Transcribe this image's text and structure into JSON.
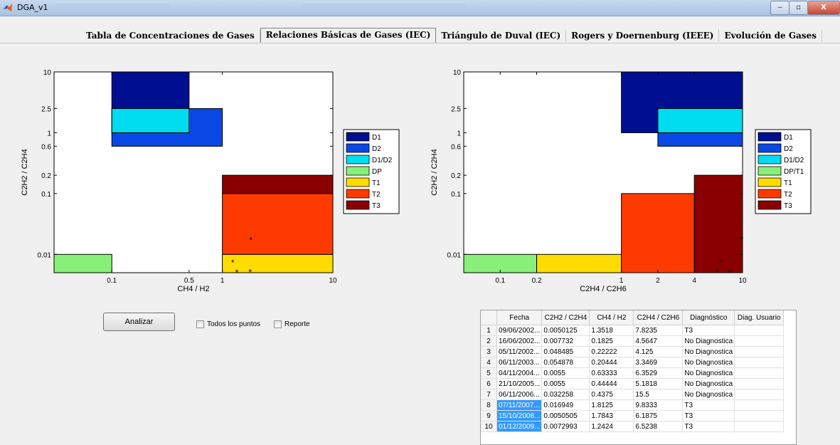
{
  "window": {
    "title": "DGA_v1",
    "min_label": "‒",
    "max_label": "▫",
    "close_label": "X"
  },
  "tabs": [
    {
      "label": "Tabla de Concentraciones de Gases",
      "active": false
    },
    {
      "label": "Relaciones Básicas de Gases (IEC)",
      "active": true
    },
    {
      "label": "Triángulo de Duval (IEC)",
      "active": false
    },
    {
      "label": "Rogers y Doernenburg (IEEE)",
      "active": false
    },
    {
      "label": "Evolución de Gases",
      "active": false
    }
  ],
  "colors": {
    "D1": "#000f8f",
    "D2": "#0a48e6",
    "D1/D2": "#00dcf0",
    "DP": "#88f078",
    "T1": "#ffdc00",
    "T2": "#ff3a00",
    "T3": "#8a0000"
  },
  "chart_data": [
    {
      "type": "scatter",
      "xlabel": "CH4 / H2",
      "ylabel": "C2H2 / C2H4",
      "x_scale": "log",
      "y_scale": "log",
      "xlim": [
        0.03,
        10
      ],
      "ylim": [
        0.005,
        10
      ],
      "xticks": [
        {
          "v": 0.1,
          "l": "0.1"
        },
        {
          "v": 0.5,
          "l": "0.5"
        },
        {
          "v": 1,
          "l": "1"
        },
        {
          "v": 10,
          "l": "10"
        }
      ],
      "yticks": [
        {
          "v": 0.01,
          "l": "0.01"
        },
        {
          "v": 0.1,
          "l": "0.1"
        },
        {
          "v": 0.2,
          "l": "0.2"
        },
        {
          "v": 0.6,
          "l": "0.6"
        },
        {
          "v": 1,
          "l": "1"
        },
        {
          "v": 2.5,
          "l": "2.5"
        },
        {
          "v": 10,
          "l": "10"
        }
      ],
      "legend": [
        "D1",
        "D2",
        "D1/D2",
        "DP",
        "T1",
        "T2",
        "T3"
      ],
      "legend_colors": [
        "#000f8f",
        "#0a48e6",
        "#00dcf0",
        "#88f078",
        "#ffdc00",
        "#ff3a00",
        "#8a0000"
      ],
      "legend_placement": "right",
      "regions": [
        {
          "name": "D2",
          "x": [
            0.1,
            1
          ],
          "y": [
            0.6,
            2.5
          ]
        },
        {
          "name": "D1",
          "x": [
            0.1,
            0.5
          ],
          "y": [
            1,
            10
          ]
        },
        {
          "name": "D1/D2",
          "x": [
            0.1,
            0.5
          ],
          "y": [
            1,
            2.5
          ]
        },
        {
          "name": "DP",
          "x": [
            0.03,
            0.1
          ],
          "y": [
            0.005,
            0.01
          ]
        },
        {
          "name": "T1",
          "x": [
            1,
            10
          ],
          "y": [
            0.005,
            0.01
          ]
        },
        {
          "name": "T2",
          "x": [
            1,
            10
          ],
          "y": [
            0.01,
            0.1
          ]
        },
        {
          "name": "T3",
          "x": [
            1,
            10
          ],
          "y": [
            0.1,
            0.2
          ]
        }
      ],
      "points": [
        {
          "x": 1.3518,
          "y": 0.0050125
        },
        {
          "x": 1.8125,
          "y": 0.016949
        },
        {
          "x": 1.7843,
          "y": 0.0050505
        },
        {
          "x": 1.2424,
          "y": 0.0072993
        }
      ]
    },
    {
      "type": "scatter",
      "xlabel": "C2H4 / C2H6",
      "ylabel": "C2H2 / C2H4",
      "x_scale": "log",
      "y_scale": "log",
      "xlim": [
        0.05,
        10
      ],
      "ylim": [
        0.005,
        10
      ],
      "xticks": [
        {
          "v": 0.1,
          "l": "0.1"
        },
        {
          "v": 0.2,
          "l": "0.2"
        },
        {
          "v": 1,
          "l": "1"
        },
        {
          "v": 2,
          "l": "2"
        },
        {
          "v": 4,
          "l": "4"
        },
        {
          "v": 10,
          "l": "10"
        }
      ],
      "yticks": [
        {
          "v": 0.01,
          "l": "0.01"
        },
        {
          "v": 0.1,
          "l": "0.1"
        },
        {
          "v": 0.2,
          "l": "0.2"
        },
        {
          "v": 0.6,
          "l": "0.6"
        },
        {
          "v": 1,
          "l": "1"
        },
        {
          "v": 2.5,
          "l": "2.5"
        },
        {
          "v": 10,
          "l": "10"
        }
      ],
      "legend": [
        "D1",
        "D2",
        "D1/D2",
        "DP/T1",
        "T1",
        "T2",
        "T3"
      ],
      "legend_colors": [
        "#000f8f",
        "#0a48e6",
        "#00dcf0",
        "#88f078",
        "#ffdc00",
        "#ff3a00",
        "#8a0000"
      ],
      "legend_placement": "right",
      "regions": [
        {
          "name": "D1",
          "x": [
            1,
            10
          ],
          "y": [
            1,
            10
          ]
        },
        {
          "name": "D2",
          "x": [
            2,
            10
          ],
          "y": [
            0.6,
            1
          ]
        },
        {
          "name": "D1/D2",
          "x": [
            2,
            10
          ],
          "y": [
            1,
            2.5
          ]
        },
        {
          "name": "DP/T1",
          "x": [
            0.05,
            0.2
          ],
          "y": [
            0.005,
            0.01
          ]
        },
        {
          "name": "T1",
          "x": [
            0.2,
            1
          ],
          "y": [
            0.005,
            0.01
          ]
        },
        {
          "name": "T2",
          "x": [
            1,
            4
          ],
          "y": [
            0.005,
            0.1
          ]
        },
        {
          "name": "T3",
          "x": [
            4,
            10
          ],
          "y": [
            0.005,
            0.2
          ]
        }
      ],
      "points": [
        {
          "x": 7.8235,
          "y": 0.0050125
        },
        {
          "x": 9.8333,
          "y": 0.016949
        },
        {
          "x": 6.1875,
          "y": 0.0050505
        },
        {
          "x": 6.5238,
          "y": 0.0072993
        }
      ]
    }
  ],
  "controls": {
    "analyze_label": "Analizar",
    "all_points_label": "Todos los puntos",
    "report_label": "Reporte"
  },
  "table": {
    "headers": [
      "",
      "Fecha",
      "C2H2 / C2H4",
      "CH4 / H2",
      "C2H4 / C2H6",
      "Diagnóstico",
      "Diag. Usuario"
    ],
    "rows": [
      {
        "n": "1",
        "fecha": "09/06/2002...",
        "c2h2": "0.0050125",
        "ch4": "1.3518",
        "c2h4": "7.8235",
        "diag": "T3",
        "user": "",
        "sel": false
      },
      {
        "n": "2",
        "fecha": "16/06/2002...",
        "c2h2": "0.007732",
        "ch4": "0.1825",
        "c2h4": "4.5647",
        "diag": "No Diagnostica",
        "user": "",
        "sel": false
      },
      {
        "n": "3",
        "fecha": "05/11/2002...",
        "c2h2": "0.048485",
        "ch4": "0.22222",
        "c2h4": "4.125",
        "diag": "No Diagnostica",
        "user": "",
        "sel": false
      },
      {
        "n": "4",
        "fecha": "06/11/2003...",
        "c2h2": "0.054878",
        "ch4": "0.20444",
        "c2h4": "3.3469",
        "diag": "No Diagnostica",
        "user": "",
        "sel": false
      },
      {
        "n": "5",
        "fecha": "04/11/2004...",
        "c2h2": "0.0055",
        "ch4": "0.63333",
        "c2h4": "6.3529",
        "diag": "No Diagnostica",
        "user": "",
        "sel": false
      },
      {
        "n": "6",
        "fecha": "21/10/2005...",
        "c2h2": "0.0055",
        "ch4": "0.44444",
        "c2h4": "5.1818",
        "diag": "No Diagnostica",
        "user": "",
        "sel": false
      },
      {
        "n": "7",
        "fecha": "06/11/2006...",
        "c2h2": "0.032258",
        "ch4": "0.4375",
        "c2h4": "15.5",
        "diag": "No Diagnostica",
        "user": "",
        "sel": false
      },
      {
        "n": "8",
        "fecha": "07/11/2007...",
        "c2h2": "0.016949",
        "ch4": "1.8125",
        "c2h4": "9.8333",
        "diag": "T3",
        "user": "",
        "sel": true
      },
      {
        "n": "9",
        "fecha": "15/10/2008...",
        "c2h2": "0.0050505",
        "ch4": "1.7843",
        "c2h4": "6.1875",
        "diag": "T3",
        "user": "",
        "sel": true
      },
      {
        "n": "10",
        "fecha": "01/12/2009...",
        "c2h2": "0.0072993",
        "ch4": "1.2424",
        "c2h4": "6.5238",
        "diag": "T3",
        "user": "",
        "sel": true
      }
    ]
  }
}
